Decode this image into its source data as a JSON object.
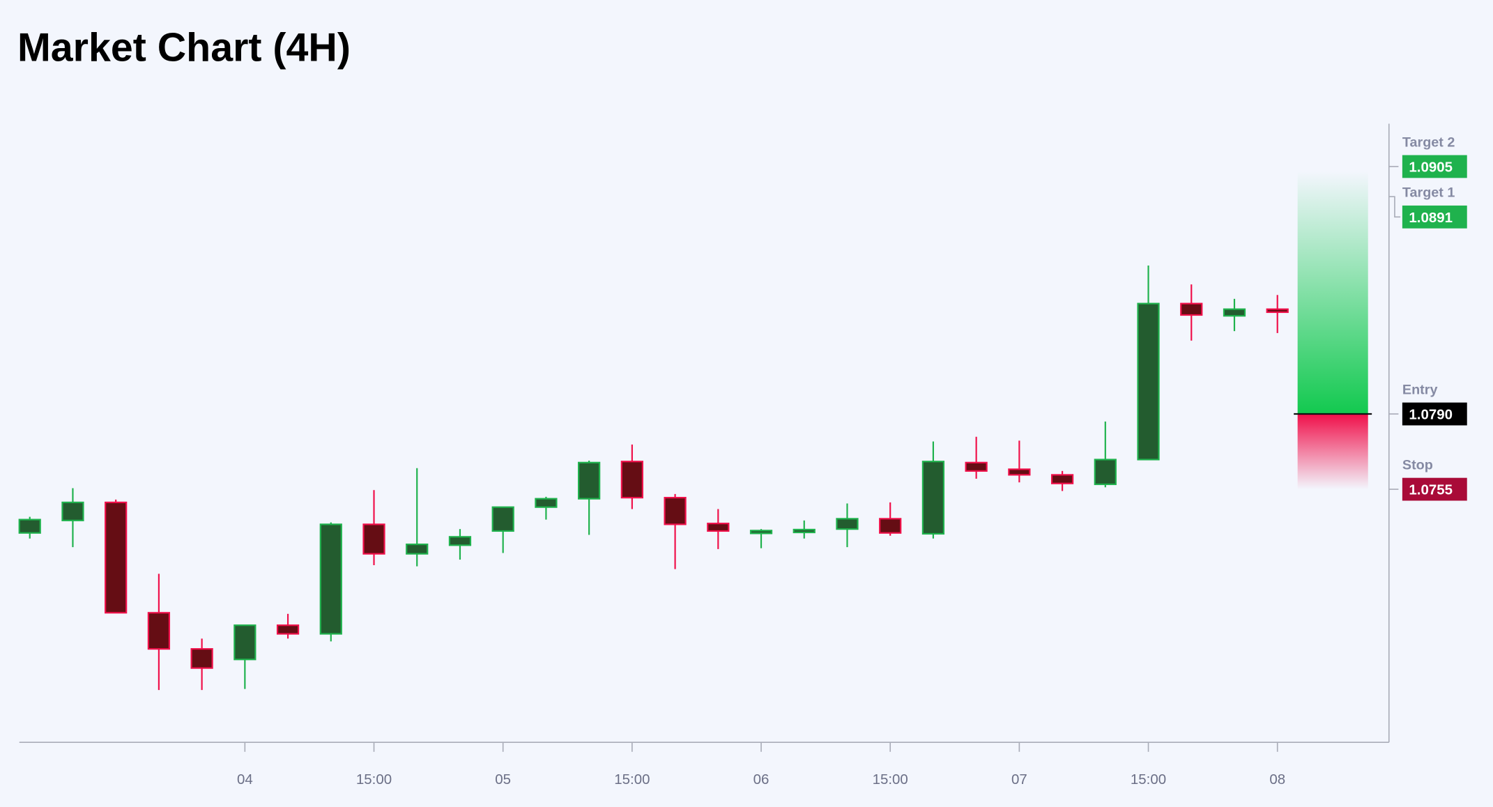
{
  "chart_data": {
    "type": "candlestick",
    "title": "Market Chart (4H)",
    "xlabel": "",
    "ylabel": "",
    "ylim": [
      1.06374,
      1.09249
    ],
    "grid": false,
    "x_tick_labels": [
      {
        "candle": 5,
        "label": "04"
      },
      {
        "candle": 8,
        "label": "15:00"
      },
      {
        "candle": 11,
        "label": "05"
      },
      {
        "candle": 14,
        "label": "15:00"
      },
      {
        "candle": 17,
        "label": "06"
      },
      {
        "candle": 20,
        "label": "15:00"
      },
      {
        "candle": 23,
        "label": "07"
      },
      {
        "candle": 26,
        "label": "15:00"
      },
      {
        "candle": 29,
        "label": "08"
      }
    ],
    "colors": {
      "up_body": "#235c2f",
      "up_border": "#1fb24d",
      "down_body": "#650d14",
      "down_border": "#f0104a",
      "background": "#f3f6fd"
    },
    "candles": [
      {
        "o": 1.07347,
        "h": 1.07422,
        "l": 1.07321,
        "c": 1.07409
      },
      {
        "o": 1.07405,
        "h": 1.07555,
        "l": 1.07281,
        "c": 1.07489
      },
      {
        "o": 1.07489,
        "h": 1.07502,
        "l": 1.06976,
        "c": 1.06976
      },
      {
        "o": 1.06976,
        "h": 1.07157,
        "l": 1.06617,
        "c": 1.06808
      },
      {
        "o": 1.06808,
        "h": 1.06856,
        "l": 1.06617,
        "c": 1.06719
      },
      {
        "o": 1.06759,
        "h": 1.06918,
        "l": 1.06622,
        "c": 1.06918
      },
      {
        "o": 1.06918,
        "h": 1.06971,
        "l": 1.06856,
        "c": 1.06878
      },
      {
        "o": 1.06878,
        "h": 1.07396,
        "l": 1.06843,
        "c": 1.07387
      },
      {
        "o": 1.07387,
        "h": 1.07546,
        "l": 1.07197,
        "c": 1.0725
      },
      {
        "o": 1.0725,
        "h": 1.07648,
        "l": 1.07192,
        "c": 1.07294
      },
      {
        "o": 1.0729,
        "h": 1.07365,
        "l": 1.07223,
        "c": 1.07329
      },
      {
        "o": 1.07356,
        "h": 1.07467,
        "l": 1.07254,
        "c": 1.07467
      },
      {
        "o": 1.07467,
        "h": 1.07515,
        "l": 1.07409,
        "c": 1.07506
      },
      {
        "o": 1.07506,
        "h": 1.07683,
        "l": 1.07338,
        "c": 1.07674
      },
      {
        "o": 1.07679,
        "h": 1.07758,
        "l": 1.07458,
        "c": 1.07511
      },
      {
        "o": 1.07511,
        "h": 1.07528,
        "l": 1.07179,
        "c": 1.07387
      },
      {
        "o": 1.07391,
        "h": 1.07458,
        "l": 1.07272,
        "c": 1.07356
      },
      {
        "o": 1.07347,
        "h": 1.07365,
        "l": 1.07276,
        "c": 1.07356
      },
      {
        "o": 1.07352,
        "h": 1.07405,
        "l": 1.07321,
        "c": 1.0736
      },
      {
        "o": 1.07365,
        "h": 1.07484,
        "l": 1.07281,
        "c": 1.07413
      },
      {
        "o": 1.07413,
        "h": 1.07489,
        "l": 1.07334,
        "c": 1.07347
      },
      {
        "o": 1.07343,
        "h": 1.07772,
        "l": 1.07321,
        "c": 1.07679
      },
      {
        "o": 1.07674,
        "h": 1.07794,
        "l": 1.07599,
        "c": 1.07635
      },
      {
        "o": 1.07643,
        "h": 1.07776,
        "l": 1.07582,
        "c": 1.07617
      },
      {
        "o": 1.07617,
        "h": 1.07635,
        "l": 1.07542,
        "c": 1.07577
      },
      {
        "o": 1.07573,
        "h": 1.07865,
        "l": 1.07559,
        "c": 1.07688
      },
      {
        "o": 1.07688,
        "h": 1.0859,
        "l": 1.07688,
        "c": 1.08413
      },
      {
        "o": 1.08413,
        "h": 1.08502,
        "l": 1.08241,
        "c": 1.0836
      },
      {
        "o": 1.08356,
        "h": 1.08435,
        "l": 1.08285,
        "c": 1.08387
      },
      {
        "o": 1.08387,
        "h": 1.08453,
        "l": 1.08276,
        "c": 1.08373
      }
    ],
    "levels": [
      {
        "name": "Target 2",
        "value": "1.0905",
        "price": 1.0905,
        "color": "#1fb24d"
      },
      {
        "name": "Target 1",
        "value": "1.0891",
        "price": 1.0891,
        "color": "#1fb24d"
      },
      {
        "name": "Entry",
        "value": "1.0790",
        "price": 1.079,
        "color": "#000000"
      },
      {
        "name": "Stop",
        "value": "1.0755",
        "price": 1.0755,
        "color": "#a90b38"
      }
    ],
    "position": {
      "entry": 1.079,
      "stop": 1.0755,
      "target": 1.0905,
      "profit_color": "#12c94f",
      "loss_color": "#f0104a"
    }
  }
}
